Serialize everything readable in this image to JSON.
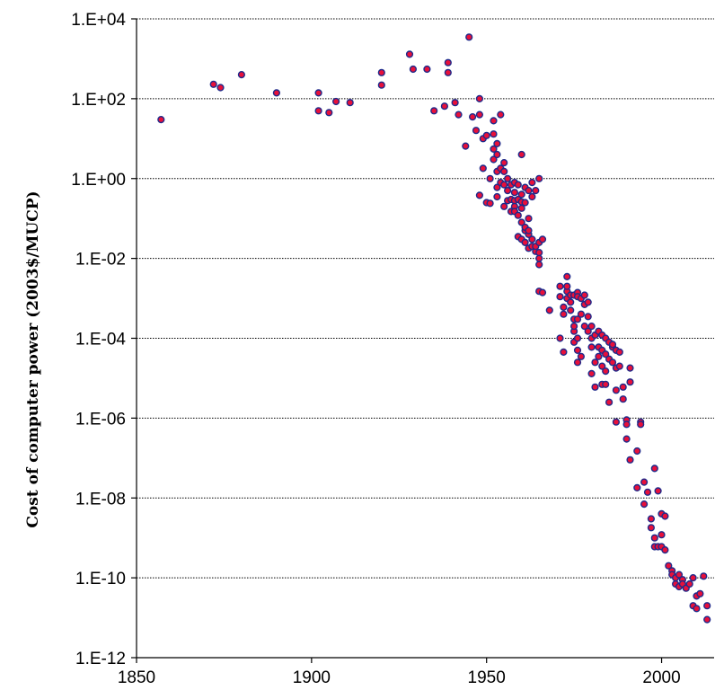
{
  "chart_data": {
    "type": "scatter",
    "title": "",
    "xlabel": "",
    "ylabel": "Cost of computer power (2003$/MUCP)",
    "xlim": [
      1850,
      2015
    ],
    "ylim": [
      1e-12,
      10000.0
    ],
    "yscale": "log",
    "x_ticks": [
      1850,
      1900,
      1950,
      2000
    ],
    "x_tick_labels": [
      "1850",
      "1900",
      "1950",
      "2000"
    ],
    "y_ticks": [
      10000.0,
      100.0,
      1,
      0.01,
      0.0001,
      1e-06,
      1e-08,
      1e-10,
      1e-12
    ],
    "y_tick_labels": [
      "1.E+04",
      "1.E+02",
      "1.E+00",
      "1.E-02",
      "1.E-04",
      "1.E-06",
      "1.E-08",
      "1.E-10",
      "1.E-12"
    ],
    "grid": "horizontal dotted",
    "legend": "none",
    "marker_fill": "#e8103a",
    "marker_edge": "#1f2a8a",
    "points": [
      [
        1857,
        30
      ],
      [
        1872,
        230
      ],
      [
        1874,
        190
      ],
      [
        1880,
        400
      ],
      [
        1890,
        140
      ],
      [
        1902,
        140
      ],
      [
        1902,
        50
      ],
      [
        1905,
        45
      ],
      [
        1907,
        85
      ],
      [
        1911,
        80
      ],
      [
        1920,
        450
      ],
      [
        1920,
        220
      ],
      [
        1928,
        1300
      ],
      [
        1929,
        550
      ],
      [
        1933,
        550
      ],
      [
        1935,
        50
      ],
      [
        1938,
        65
      ],
      [
        1939,
        800
      ],
      [
        1939,
        450
      ],
      [
        1941,
        80
      ],
      [
        1942,
        40
      ],
      [
        1944,
        6.5
      ],
      [
        1945,
        3500
      ],
      [
        1946,
        35
      ],
      [
        1947,
        16
      ],
      [
        1948,
        40
      ],
      [
        1948,
        100
      ],
      [
        1948,
        0.38
      ],
      [
        1949,
        1.8
      ],
      [
        1949,
        10
      ],
      [
        1950,
        0.25
      ],
      [
        1950,
        12
      ],
      [
        1951,
        1.0
      ],
      [
        1951,
        0.24
      ],
      [
        1952,
        3.0
      ],
      [
        1952,
        28
      ],
      [
        1952,
        13
      ],
      [
        1952,
        5.5
      ],
      [
        1953,
        0.6
      ],
      [
        1953,
        1.5
      ],
      [
        1953,
        4.0
      ],
      [
        1953,
        7.5
      ],
      [
        1953,
        0.35
      ],
      [
        1954,
        0.8
      ],
      [
        1954,
        40
      ],
      [
        1954,
        1.8
      ],
      [
        1955,
        2.5
      ],
      [
        1955,
        0.2
      ],
      [
        1955,
        0.7
      ],
      [
        1955,
        1.5
      ],
      [
        1956,
        0.5
      ],
      [
        1956,
        0.28
      ],
      [
        1956,
        1.0
      ],
      [
        1957,
        0.7
      ],
      [
        1957,
        0.3
      ],
      [
        1957,
        0.15
      ],
      [
        1958,
        0.8
      ],
      [
        1958,
        0.28
      ],
      [
        1958,
        0.45
      ],
      [
        1958,
        0.2
      ],
      [
        1958,
        0.15
      ],
      [
        1959,
        0.3
      ],
      [
        1959,
        0.12
      ],
      [
        1959,
        0.035
      ],
      [
        1959,
        0.7
      ],
      [
        1960,
        0.4
      ],
      [
        1960,
        0.26
      ],
      [
        1960,
        0.18
      ],
      [
        1960,
        0.03
      ],
      [
        1960,
        0.08
      ],
      [
        1960,
        4.0
      ],
      [
        1961,
        0.6
      ],
      [
        1961,
        0.25
      ],
      [
        1961,
        0.05
      ],
      [
        1961,
        0.025
      ],
      [
        1961,
        0.06
      ],
      [
        1962,
        0.5
      ],
      [
        1962,
        0.04
      ],
      [
        1962,
        0.018
      ],
      [
        1962,
        0.05
      ],
      [
        1962,
        0.1
      ],
      [
        1963,
        0.8
      ],
      [
        1963,
        0.35
      ],
      [
        1963,
        0.03
      ],
      [
        1963,
        0.02
      ],
      [
        1964,
        0.015
      ],
      [
        1964,
        0.5
      ],
      [
        1964,
        0.02
      ],
      [
        1965,
        0.025
      ],
      [
        1965,
        0.01
      ],
      [
        1965,
        0.007
      ],
      [
        1965,
        0.014
      ],
      [
        1965,
        1.0
      ],
      [
        1965,
        0.0015
      ],
      [
        1966,
        0.03
      ],
      [
        1966,
        0.0014
      ],
      [
        1968,
        0.0005
      ],
      [
        1971,
        0.002
      ],
      [
        1971,
        0.0011
      ],
      [
        1971,
        0.0001
      ],
      [
        1972,
        0.0006
      ],
      [
        1972,
        0.0004
      ],
      [
        1972,
        4.5e-05
      ],
      [
        1973,
        0.0035
      ],
      [
        1973,
        0.0015
      ],
      [
        1973,
        0.001
      ],
      [
        1973,
        0.002
      ],
      [
        1974,
        0.0012
      ],
      [
        1974,
        0.0008
      ],
      [
        1974,
        0.0005
      ],
      [
        1975,
        0.0003
      ],
      [
        1975,
        0.00015
      ],
      [
        1975,
        8e-05
      ],
      [
        1975,
        0.0012
      ],
      [
        1975,
        0.0002
      ],
      [
        1976,
        0.0014
      ],
      [
        1976,
        0.0011
      ],
      [
        1976,
        0.0003
      ],
      [
        1976,
        2.5e-05
      ],
      [
        1976,
        0.0001
      ],
      [
        1976,
        5e-05
      ],
      [
        1977,
        0.001
      ],
      [
        1977,
        0.0004
      ],
      [
        1977,
        3.5e-05
      ],
      [
        1978,
        0.0012
      ],
      [
        1978,
        0.0007
      ],
      [
        1978,
        0.0002
      ],
      [
        1979,
        0.0008
      ],
      [
        1979,
        0.00035
      ],
      [
        1979,
        0.00015
      ],
      [
        1980,
        0.0002
      ],
      [
        1980,
        6e-05
      ],
      [
        1980,
        1.3e-05
      ],
      [
        1980,
        0.0001
      ],
      [
        1981,
        6e-06
      ],
      [
        1981,
        2.5e-05
      ],
      [
        1981,
        0.00012
      ],
      [
        1982,
        0.00015
      ],
      [
        1982,
        6e-05
      ],
      [
        1982,
        3.5e-05
      ],
      [
        1983,
        5e-05
      ],
      [
        1983,
        2e-05
      ],
      [
        1983,
        7e-06
      ],
      [
        1983,
        0.00012
      ],
      [
        1984,
        0.0001
      ],
      [
        1984,
        4e-05
      ],
      [
        1984,
        1.5e-05
      ],
      [
        1984,
        7e-06
      ],
      [
        1985,
        8e-05
      ],
      [
        1985,
        3e-05
      ],
      [
        1985,
        2.5e-06
      ],
      [
        1986,
        6e-05
      ],
      [
        1986,
        2.5e-05
      ],
      [
        1986,
        7e-05
      ],
      [
        1987,
        5e-05
      ],
      [
        1987,
        1.8e-05
      ],
      [
        1987,
        8e-07
      ],
      [
        1987,
        5e-06
      ],
      [
        1988,
        4.5e-05
      ],
      [
        1988,
        2e-05
      ],
      [
        1989,
        6e-06
      ],
      [
        1989,
        3e-06
      ],
      [
        1990,
        9e-07
      ],
      [
        1990,
        7e-07
      ],
      [
        1990,
        3e-07
      ],
      [
        1991,
        1.8e-05
      ],
      [
        1991,
        8e-06
      ],
      [
        1991,
        9e-08
      ],
      [
        1993,
        1.5e-07
      ],
      [
        1993,
        1.8e-08
      ],
      [
        1994,
        8e-07
      ],
      [
        1994,
        7e-07
      ],
      [
        1995,
        2.5e-08
      ],
      [
        1995,
        7e-09
      ],
      [
        1996,
        1.4e-08
      ],
      [
        1997,
        3e-09
      ],
      [
        1997,
        1.8e-09
      ],
      [
        1998,
        5.5e-08
      ],
      [
        1998,
        1e-09
      ],
      [
        1998,
        6e-10
      ],
      [
        1999,
        6e-10
      ],
      [
        1999,
        1.5e-08
      ],
      [
        2000,
        4e-09
      ],
      [
        2000,
        1.2e-09
      ],
      [
        2000,
        6e-10
      ],
      [
        2001,
        5e-10
      ],
      [
        2001,
        3.5e-09
      ],
      [
        2002,
        2e-10
      ],
      [
        2003,
        1.5e-10
      ],
      [
        2003,
        1.2e-10
      ],
      [
        2004,
        1e-10
      ],
      [
        2004,
        7e-11
      ],
      [
        2005,
        1.2e-10
      ],
      [
        2005,
        6e-11
      ],
      [
        2006,
        9e-11
      ],
      [
        2006,
        7e-11
      ],
      [
        2007,
        5.5e-11
      ],
      [
        2008,
        7e-11
      ],
      [
        2009,
        1e-10
      ],
      [
        2009,
        2e-11
      ],
      [
        2010,
        3.5e-11
      ],
      [
        2010,
        1.7e-11
      ],
      [
        2011,
        4e-11
      ],
      [
        2012,
        1.1e-10
      ],
      [
        2013,
        2e-11
      ],
      [
        2013,
        9e-12
      ]
    ]
  }
}
